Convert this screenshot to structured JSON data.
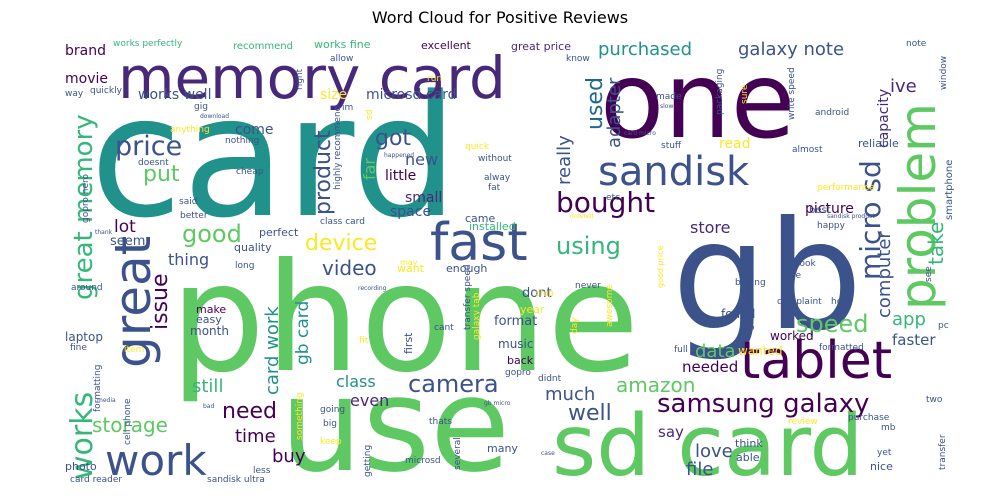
{
  "chart_data": {
    "type": "wordcloud",
    "title": "Word Cloud for Positive Reviews",
    "colors": [
      "#440154",
      "#3b528b",
      "#21918c",
      "#5ec962",
      "#fde725",
      "#1f6a8c",
      "#482878",
      "#35b779"
    ],
    "words": [
      {
        "text": "card",
        "weight": 100,
        "color": "#21918c"
      },
      {
        "text": "phone",
        "weight": 92,
        "color": "#5ec962"
      },
      {
        "text": "gb",
        "weight": 70,
        "color": "#3b528b"
      },
      {
        "text": "use",
        "weight": 66,
        "color": "#5ec962"
      },
      {
        "text": "one",
        "weight": 58,
        "color": "#440154"
      },
      {
        "text": "sd card",
        "weight": 55,
        "color": "#5ec962"
      },
      {
        "text": "memory card",
        "weight": 40,
        "color": "#482878"
      },
      {
        "text": "fast",
        "weight": 32,
        "color": "#3b528b"
      },
      {
        "text": "tablet",
        "weight": 30,
        "color": "#440154"
      },
      {
        "text": "great",
        "weight": 30,
        "color": "#3b528b"
      },
      {
        "text": "problem",
        "weight": 30,
        "color": "#5ec962"
      },
      {
        "text": "sandisk",
        "weight": 27,
        "color": "#3b528b"
      },
      {
        "text": "work",
        "weight": 27,
        "color": "#3b528b"
      },
      {
        "text": "works",
        "weight": 25,
        "color": "#35b779"
      },
      {
        "text": "samsung galaxy",
        "weight": 22,
        "color": "#440154"
      },
      {
        "text": "micro sd",
        "weight": 20,
        "color": "#3b528b"
      },
      {
        "text": "bought",
        "weight": 20,
        "color": "#440154"
      },
      {
        "text": "great memory",
        "weight": 19,
        "color": "#35b779"
      },
      {
        "text": "price",
        "weight": 17,
        "color": "#3b528b"
      },
      {
        "text": "camera",
        "weight": 17,
        "color": "#3b528b"
      },
      {
        "text": "good",
        "weight": 17,
        "color": "#5ec962"
      },
      {
        "text": "used",
        "weight": 16,
        "color": "#1f6a8c"
      },
      {
        "text": "got",
        "weight": 16,
        "color": "#3b528b"
      },
      {
        "text": "speed",
        "weight": 16,
        "color": "#5ec962"
      },
      {
        "text": "issue",
        "weight": 15,
        "color": "#440154"
      },
      {
        "text": "device",
        "weight": 15,
        "color": "#fde725"
      },
      {
        "text": "using",
        "weight": 15,
        "color": "#35b779"
      },
      {
        "text": "well",
        "weight": 15,
        "color": "#3b528b"
      },
      {
        "text": "need",
        "weight": 14,
        "color": "#440154"
      },
      {
        "text": "put",
        "weight": 14,
        "color": "#5ec962"
      },
      {
        "text": "product",
        "weight": 14,
        "color": "#3b528b"
      },
      {
        "text": "storage",
        "weight": 14,
        "color": "#5ec962"
      },
      {
        "text": "amazon",
        "weight": 13,
        "color": "#5ec962"
      },
      {
        "text": "galaxy note",
        "weight": 13,
        "color": "#3b528b"
      },
      {
        "text": "purchased",
        "weight": 13,
        "color": "#21918c"
      },
      {
        "text": "video",
        "weight": 13,
        "color": "#3b528b"
      },
      {
        "text": "take",
        "weight": 13,
        "color": "#35b779"
      },
      {
        "text": "really",
        "weight": 13,
        "color": "#3b528b"
      },
      {
        "text": "adapter",
        "weight": 12,
        "color": "#3b528b"
      },
      {
        "text": "ive",
        "weight": 12,
        "color": "#482878"
      },
      {
        "text": "computer",
        "weight": 12,
        "color": "#3b528b"
      },
      {
        "text": "card work",
        "weight": 12,
        "color": "#21918c"
      },
      {
        "text": "time",
        "weight": 12,
        "color": "#440154"
      },
      {
        "text": "data",
        "weight": 12,
        "color": "#5ec962"
      },
      {
        "text": "much",
        "weight": 12,
        "color": "#3b528b"
      },
      {
        "text": "file",
        "weight": 12,
        "color": "#3b528b"
      },
      {
        "text": "love",
        "weight": 12,
        "color": "#3b528b"
      },
      {
        "text": "gb card",
        "weight": 12,
        "color": "#21918c"
      },
      {
        "text": "still",
        "weight": 12,
        "color": "#35b779"
      },
      {
        "text": "app",
        "weight": 12,
        "color": "#35b779"
      },
      {
        "text": "buy",
        "weight": 12,
        "color": "#440154"
      },
      {
        "text": "class",
        "weight": 11,
        "color": "#21918c"
      },
      {
        "text": "lot",
        "weight": 11,
        "color": "#440154"
      },
      {
        "text": "thing",
        "weight": 11,
        "color": "#3b528b"
      },
      {
        "text": "store",
        "weight": 11,
        "color": "#482878"
      },
      {
        "text": "even",
        "weight": 10,
        "color": "#482878"
      },
      {
        "text": "say",
        "weight": 10,
        "color": "#482878"
      },
      {
        "text": "needed",
        "weight": 10,
        "color": "#440154"
      },
      {
        "text": "faster",
        "weight": 10,
        "color": "#3b528b"
      },
      {
        "text": "new",
        "weight": 10,
        "color": "#3b528b"
      },
      {
        "text": "far",
        "weight": 10,
        "color": "#5ec962"
      },
      {
        "text": "capacity",
        "weight": 9,
        "color": "#482878"
      },
      {
        "text": "picture",
        "weight": 9,
        "color": "#440154"
      },
      {
        "text": "read",
        "weight": 9,
        "color": "#fde725"
      },
      {
        "text": "works well",
        "weight": 9,
        "color": "#3b528b"
      },
      {
        "text": "microsd card",
        "weight": 9,
        "color": "#3b528b"
      },
      {
        "text": "come",
        "weight": 9,
        "color": "#3b528b"
      },
      {
        "text": "movie",
        "weight": 9,
        "color": "#440154"
      },
      {
        "text": "brand",
        "weight": 9,
        "color": "#440154"
      },
      {
        "text": "size",
        "weight": 9,
        "color": "#fde725"
      },
      {
        "text": "little",
        "weight": 9,
        "color": "#440154"
      },
      {
        "text": "small",
        "weight": 9,
        "color": "#482878"
      },
      {
        "text": "space",
        "weight": 9,
        "color": "#3b528b"
      },
      {
        "text": "seem",
        "weight": 9,
        "color": "#3b528b"
      },
      {
        "text": "format",
        "weight": 9,
        "color": "#3b528b"
      },
      {
        "text": "dont",
        "weight": 9,
        "color": "#3b528b"
      },
      {
        "text": "music",
        "weight": 8,
        "color": "#3b528b"
      },
      {
        "text": "worked",
        "weight": 8,
        "color": "#440154"
      },
      {
        "text": "wanted",
        "weight": 8,
        "color": "#fde725"
      },
      {
        "text": "found",
        "weight": 8,
        "color": "#3b528b"
      },
      {
        "text": "month",
        "weight": 8,
        "color": "#3b528b"
      },
      {
        "text": "laptop",
        "weight": 8,
        "color": "#3b528b"
      },
      {
        "text": "quality",
        "weight": 7,
        "color": "#3b528b"
      },
      {
        "text": "perfect",
        "weight": 7,
        "color": "#3b528b"
      },
      {
        "text": "excellent",
        "weight": 7,
        "color": "#440154"
      },
      {
        "text": "great price",
        "weight": 7,
        "color": "#482878"
      },
      {
        "text": "recommend",
        "weight": 7,
        "color": "#35b779"
      },
      {
        "text": "works fine",
        "weight": 7,
        "color": "#35b779"
      },
      {
        "text": "works perfectly",
        "weight": 7,
        "color": "#35b779"
      },
      {
        "text": "reliable",
        "weight": 7,
        "color": "#3b528b"
      },
      {
        "text": "smartphone",
        "weight": 7,
        "color": "#3b528b"
      },
      {
        "text": "best",
        "weight": 7,
        "color": "#3b528b"
      },
      {
        "text": "year",
        "weight": 7,
        "color": "#fde725"
      },
      {
        "text": "installed",
        "weight": 7,
        "color": "#35b779"
      },
      {
        "text": "came",
        "weight": 7,
        "color": "#3b528b"
      },
      {
        "text": "enough",
        "weight": 7,
        "color": "#3b528b"
      },
      {
        "text": "want",
        "weight": 7,
        "color": "#fde725"
      },
      {
        "text": "think",
        "weight": 7,
        "color": "#3b528b"
      },
      {
        "text": "able",
        "weight": 7,
        "color": "#3b528b"
      },
      {
        "text": "many",
        "weight": 7,
        "color": "#3b528b"
      },
      {
        "text": "nice",
        "weight": 7,
        "color": "#3b528b"
      },
      {
        "text": "back",
        "weight": 7,
        "color": "#440154"
      },
      {
        "text": "first",
        "weight": 7,
        "color": "#3b528b"
      },
      {
        "text": "make",
        "weight": 7,
        "color": "#440154"
      },
      {
        "text": "easy",
        "weight": 7,
        "color": "#3b528b"
      },
      {
        "text": "photo",
        "weight": 7,
        "color": "#3b528b"
      },
      {
        "text": "card reader",
        "weight": 6,
        "color": "#3b528b"
      },
      {
        "text": "sandisk ultra",
        "weight": 6,
        "color": "#3b528b"
      },
      {
        "text": "getting",
        "weight": 6,
        "color": "#3b528b"
      },
      {
        "text": "several",
        "weight": 6,
        "color": "#3b528b"
      },
      {
        "text": "microsd",
        "weight": 6,
        "color": "#3b528b"
      },
      {
        "text": "keep",
        "weight": 6,
        "color": "#fde725"
      },
      {
        "text": "big",
        "weight": 6,
        "color": "#3b528b"
      },
      {
        "text": "going",
        "weight": 6,
        "color": "#3b528b"
      },
      {
        "text": "thats",
        "weight": 6,
        "color": "#3b528b"
      },
      {
        "text": "didnt",
        "weight": 6,
        "color": "#3b528b"
      },
      {
        "text": "gopro",
        "weight": 6,
        "color": "#3b528b"
      },
      {
        "text": "cant",
        "weight": 6,
        "color": "#3b528b"
      },
      {
        "text": "item",
        "weight": 6,
        "color": "#fde725"
      },
      {
        "text": "around",
        "weight": 6,
        "color": "#3b528b"
      },
      {
        "text": "fine",
        "weight": 6,
        "color": "#3b528b"
      },
      {
        "text": "long",
        "weight": 6,
        "color": "#3b528b"
      },
      {
        "text": "fit",
        "weight": 6,
        "color": "#fde725"
      },
      {
        "text": "cheap",
        "weight": 6,
        "color": "#3b528b"
      },
      {
        "text": "said",
        "weight": 6,
        "color": "#3b528b"
      },
      {
        "text": "better",
        "weight": 6,
        "color": "#3b528b"
      },
      {
        "text": "way",
        "weight": 6,
        "color": "#3b528b"
      },
      {
        "text": "quickly",
        "weight": 6,
        "color": "#3b528b"
      },
      {
        "text": "gig",
        "weight": 6,
        "color": "#3b528b"
      },
      {
        "text": "anything",
        "weight": 6,
        "color": "#fde725"
      },
      {
        "text": "nothing",
        "weight": 6,
        "color": "#3b528b"
      },
      {
        "text": "doesnt",
        "weight": 6,
        "color": "#3b528b"
      },
      {
        "text": "gopro hero",
        "weight": 6,
        "color": "#3b528b"
      },
      {
        "text": "highly recommend",
        "weight": 6,
        "color": "#3b528b"
      },
      {
        "text": "class card",
        "weight": 6,
        "color": "#3b528b"
      },
      {
        "text": "im",
        "weight": 6,
        "color": "#3b528b"
      },
      {
        "text": "allow",
        "weight": 6,
        "color": "#3b528b"
      },
      {
        "text": "right",
        "weight": 6,
        "color": "#3b528b"
      },
      {
        "text": "know",
        "weight": 6,
        "color": "#3b528b"
      },
      {
        "text": "run",
        "weight": 6,
        "color": "#fde725"
      },
      {
        "text": "quick",
        "weight": 6,
        "color": "#fde725"
      },
      {
        "text": "without",
        "weight": 6,
        "color": "#3b528b"
      },
      {
        "text": "alway",
        "weight": 6,
        "color": "#3b528b"
      },
      {
        "text": "fat",
        "weight": 6,
        "color": "#3b528b"
      },
      {
        "text": "etc",
        "weight": 6,
        "color": "#3b528b"
      },
      {
        "text": "made",
        "weight": 6,
        "color": "#3b528b"
      },
      {
        "text": "packaging",
        "weight": 6,
        "color": "#3b528b"
      },
      {
        "text": "sure",
        "weight": 6,
        "color": "#fde725"
      },
      {
        "text": "stuff",
        "weight": 6,
        "color": "#3b528b"
      },
      {
        "text": "almost",
        "weight": 6,
        "color": "#3b528b"
      },
      {
        "text": "write speed",
        "weight": 6,
        "color": "#3b528b"
      },
      {
        "text": "android",
        "weight": 6,
        "color": "#3b528b"
      },
      {
        "text": "note",
        "weight": 6,
        "color": "#3b528b"
      },
      {
        "text": "window",
        "weight": 6,
        "color": "#3b528b"
      },
      {
        "text": "yet",
        "weight": 6,
        "color": "#3b528b"
      },
      {
        "text": "performance",
        "weight": 6,
        "color": "#fde725"
      },
      {
        "text": "happy",
        "weight": 6,
        "color": "#3b528b"
      },
      {
        "text": "complaint",
        "weight": 6,
        "color": "#3b528b"
      },
      {
        "text": "hold",
        "weight": 6,
        "color": "#3b528b"
      },
      {
        "text": "took",
        "weight": 6,
        "color": "#3b528b"
      },
      {
        "text": "give",
        "weight": 6,
        "color": "#3b528b"
      },
      {
        "text": "buying",
        "weight": 6,
        "color": "#3b528b"
      },
      {
        "text": "everything",
        "weight": 6,
        "color": "#3b528b"
      },
      {
        "text": "mp",
        "weight": 6,
        "color": "#3b528b"
      },
      {
        "text": "full",
        "weight": 6,
        "color": "#3b528b"
      },
      {
        "text": "formatted",
        "weight": 6,
        "color": "#3b528b"
      },
      {
        "text": "mb",
        "weight": 6,
        "color": "#3b528b"
      },
      {
        "text": "purchase",
        "weight": 6,
        "color": "#3b528b"
      },
      {
        "text": "two",
        "weight": 6,
        "color": "#3b528b"
      },
      {
        "text": "transfer",
        "weight": 6,
        "color": "#3b528b"
      },
      {
        "text": "transfer speed",
        "weight": 6,
        "color": "#3b528b"
      },
      {
        "text": "chip",
        "weight": 6,
        "color": "#fde725"
      },
      {
        "text": "day",
        "weight": 6,
        "color": "#fde725"
      },
      {
        "text": "never",
        "weight": 6,
        "color": "#3b528b"
      },
      {
        "text": "awesome",
        "weight": 6,
        "color": "#fde725"
      },
      {
        "text": "formatting",
        "weight": 6,
        "color": "#3b528b"
      },
      {
        "text": "cell phone",
        "weight": 6,
        "color": "#3b528b"
      },
      {
        "text": "something",
        "weight": 6,
        "color": "#fde725"
      },
      {
        "text": "less",
        "weight": 6,
        "color": "#3b528b"
      },
      {
        "text": "sd",
        "weight": 6,
        "color": "#fde725"
      },
      {
        "text": "pc",
        "weight": 6,
        "color": "#3b528b"
      },
      {
        "text": "see",
        "weight": 6,
        "color": "#3b528b"
      },
      {
        "text": "may",
        "weight": 6,
        "color": "#fde725"
      },
      {
        "text": "good price",
        "weight": 6,
        "color": "#fde725"
      },
      {
        "text": "sandisk product",
        "weight": 5,
        "color": "#3b528b"
      },
      {
        "text": "recording",
        "weight": 5,
        "color": "#3b528b"
      },
      {
        "text": "thank",
        "weight": 5,
        "color": "#3b528b"
      },
      {
        "text": "happened",
        "weight": 5,
        "color": "#3b528b"
      },
      {
        "text": "ordered",
        "weight": 5,
        "color": "#fde725"
      },
      {
        "text": "slow",
        "weight": 5,
        "color": "#3b528b"
      },
      {
        "text": "download",
        "weight": 5,
        "color": "#3b528b"
      },
      {
        "text": "media",
        "weight": 5,
        "color": "#3b528b"
      },
      {
        "text": "bad",
        "weight": 5,
        "color": "#3b528b"
      },
      {
        "text": "case",
        "weight": 5,
        "color": "#3b528b"
      },
      {
        "text": "review",
        "weight": 5,
        "color": "#fde725"
      },
      {
        "text": "gb micro",
        "weight": 5,
        "color": "#3b528b"
      },
      {
        "text": "galaxy tab",
        "weight": 5,
        "color": "#fde725"
      },
      {
        "text": "card micro",
        "weight": 5,
        "color": "#3b528b"
      }
    ]
  }
}
